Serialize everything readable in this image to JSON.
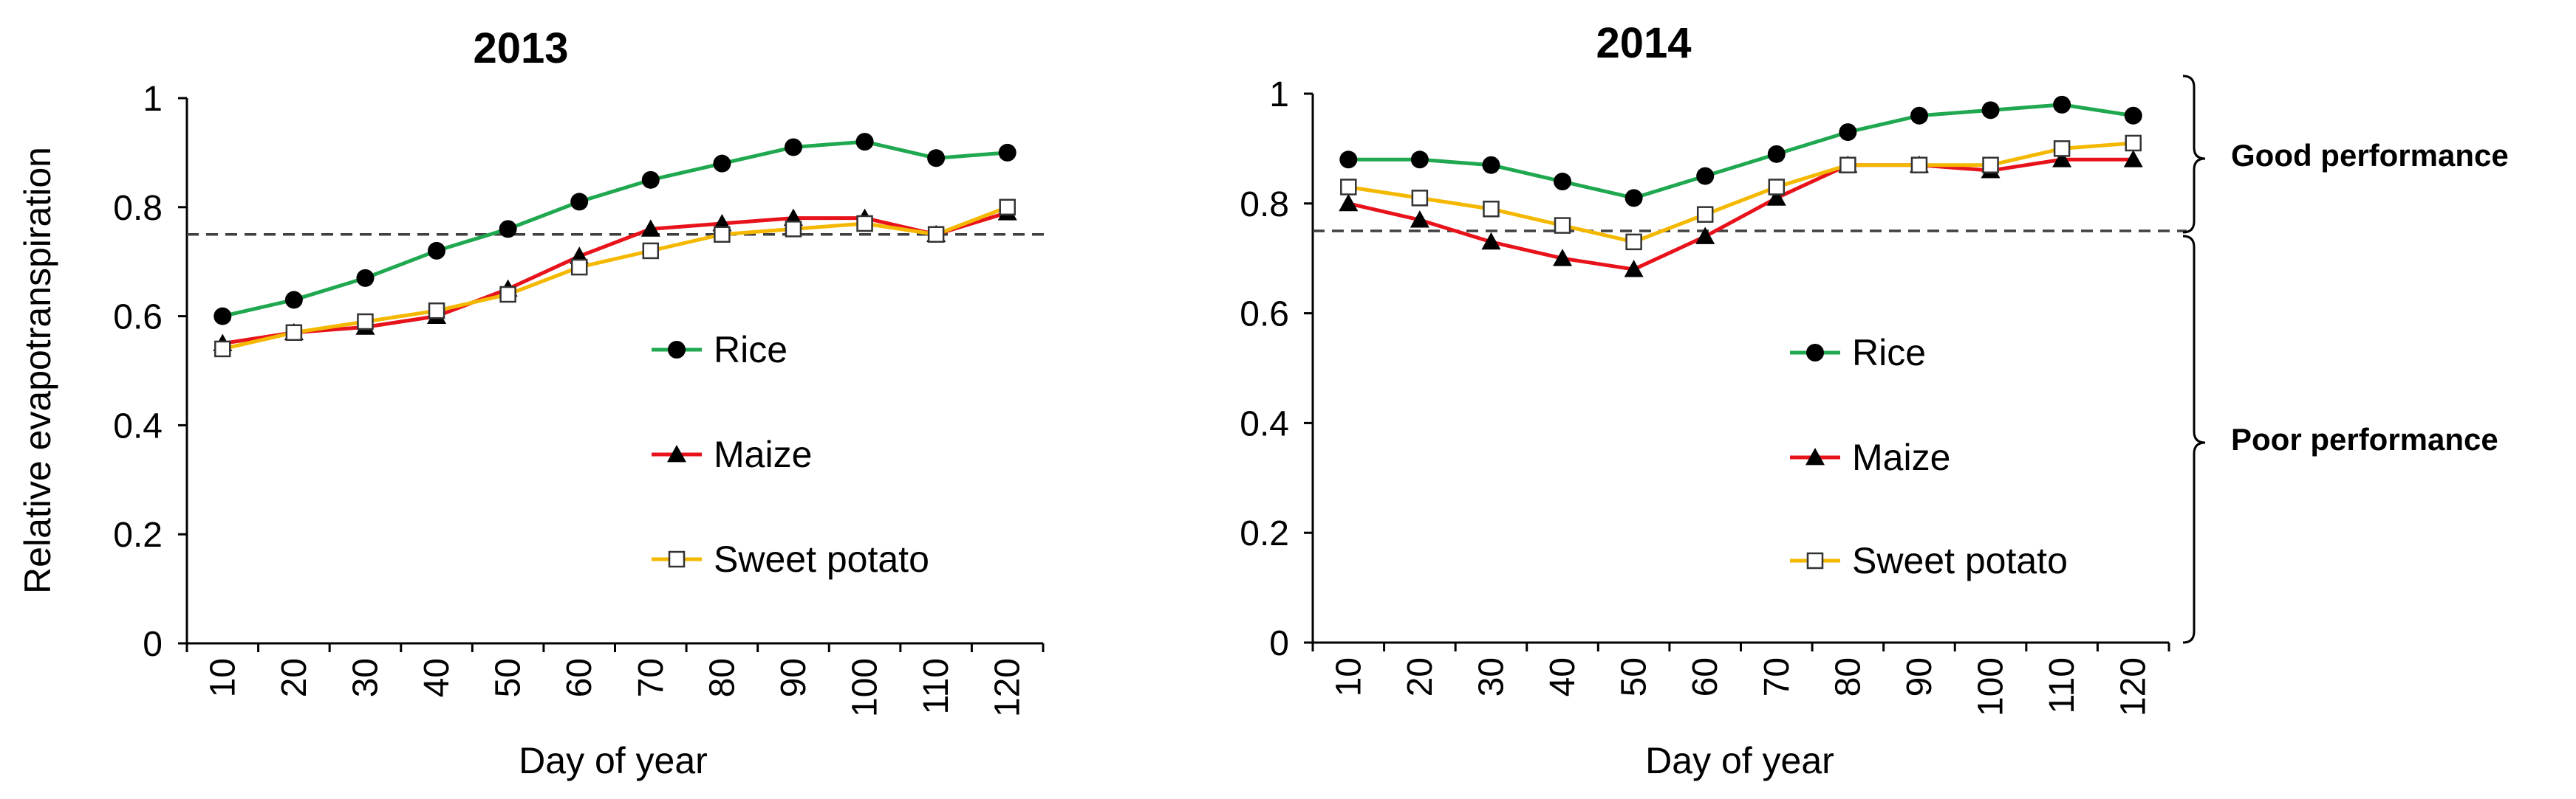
{
  "colors": {
    "rice": "#1fa84f",
    "maize": "#e8121b",
    "sweet_potato": "#f5b800",
    "threshold": "#404040"
  },
  "icons": {
    "rice": "filled-circle-marker",
    "maize": "filled-triangle-marker",
    "sweet_potato": "open-square-marker"
  },
  "chart_data": [
    {
      "type": "line",
      "title": "2013",
      "xlabel": "Day of year",
      "ylabel": "Relative evapotranspiration",
      "ylim": [
        0,
        1
      ],
      "yticks": [
        "0",
        "0.2",
        "0.4",
        "0.6",
        "0.8",
        "1"
      ],
      "categories": [
        "10",
        "20",
        "30",
        "40",
        "50",
        "60",
        "70",
        "80",
        "90",
        "100",
        "110",
        "120"
      ],
      "threshold": 0.75,
      "series": [
        {
          "name": "Rice",
          "values": [
            0.6,
            0.63,
            0.67,
            0.72,
            0.76,
            0.81,
            0.85,
            0.88,
            0.91,
            0.92,
            0.89,
            0.9
          ]
        },
        {
          "name": "Maize",
          "values": [
            0.55,
            0.57,
            0.58,
            0.6,
            0.65,
            0.71,
            0.76,
            0.77,
            0.78,
            0.78,
            0.75,
            0.79
          ]
        },
        {
          "name": "Sweet potato",
          "values": [
            0.54,
            0.57,
            0.59,
            0.61,
            0.64,
            0.69,
            0.72,
            0.75,
            0.76,
            0.77,
            0.75,
            0.8
          ]
        }
      ]
    },
    {
      "type": "line",
      "title": "2014",
      "xlabel": "Day of year",
      "ylabel": "",
      "ylim": [
        0,
        1
      ],
      "yticks": [
        "0",
        "0.2",
        "0.4",
        "0.6",
        "0.8",
        "1"
      ],
      "categories": [
        "10",
        "20",
        "30",
        "40",
        "50",
        "60",
        "70",
        "80",
        "90",
        "100",
        "110",
        "120"
      ],
      "threshold": 0.75,
      "series": [
        {
          "name": "Rice",
          "values": [
            0.88,
            0.88,
            0.87,
            0.84,
            0.81,
            0.85,
            0.89,
            0.93,
            0.96,
            0.97,
            0.98,
            0.96
          ]
        },
        {
          "name": "Maize",
          "values": [
            0.8,
            0.77,
            0.73,
            0.7,
            0.68,
            0.74,
            0.81,
            0.87,
            0.87,
            0.86,
            0.88,
            0.88
          ]
        },
        {
          "name": "Sweet potato",
          "values": [
            0.83,
            0.81,
            0.79,
            0.76,
            0.73,
            0.78,
            0.83,
            0.87,
            0.87,
            0.87,
            0.9,
            0.91
          ]
        }
      ],
      "annotations": [
        "Good performance",
        "Poor performance"
      ]
    }
  ]
}
